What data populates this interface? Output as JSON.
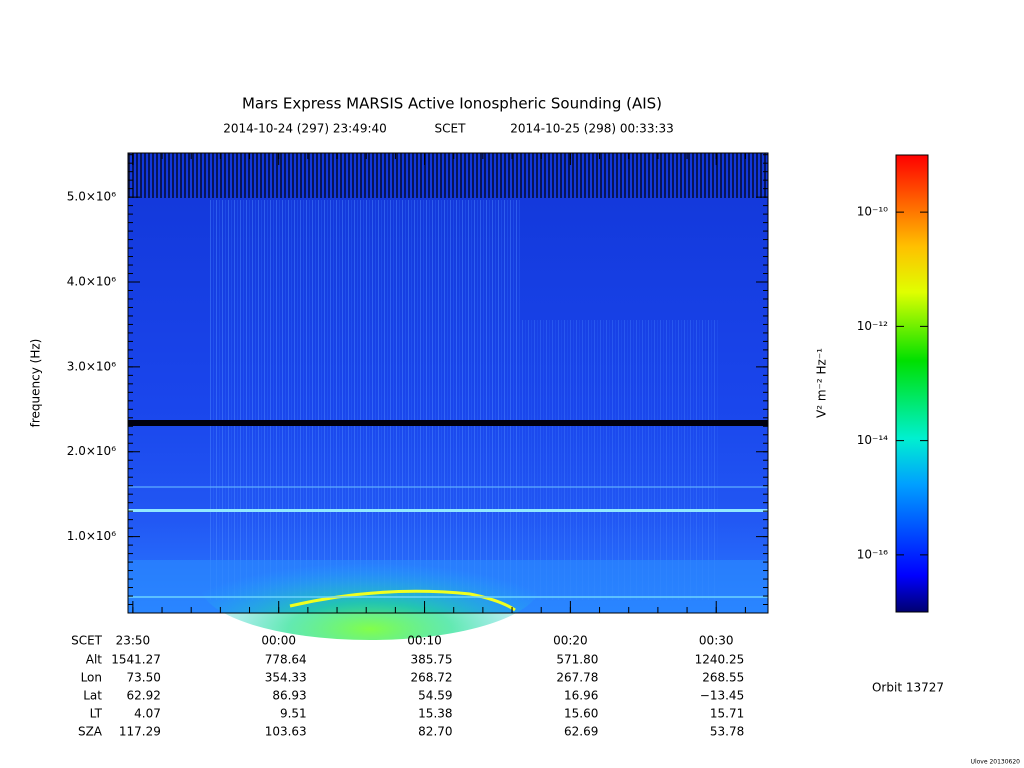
{
  "chart_data": {
    "type": "spectrogram",
    "title": "Mars Express MARSIS Active Ionospheric Sounding (AIS)",
    "start_label": "2014-10-24 (297) 23:49:40",
    "time_system": "SCET",
    "end_label": "2014-10-25 (298) 00:33:33",
    "ylabel": "frequency (Hz)",
    "xlim": [
      "23:49:40",
      "00:33:33"
    ],
    "xticks": [
      "23:50",
      "00:00",
      "00:10",
      "00:20",
      "00:30"
    ],
    "ylim": [
      100000,
      5520000
    ],
    "yticks": [
      {
        "value": 1000000,
        "label": "1.0×10⁶"
      },
      {
        "value": 2000000,
        "label": "2.0×10⁶"
      },
      {
        "value": 3000000,
        "label": "3.0×10⁶"
      },
      {
        "value": 4000000,
        "label": "4.0×10⁶"
      },
      {
        "value": 5000000,
        "label": "5.0×10⁶"
      }
    ],
    "ephemeris": {
      "labels": [
        "SCET",
        "Alt",
        "Lon",
        "Lat",
        "LT",
        "SZA"
      ],
      "rows": [
        [
          "1541.27",
          "778.64",
          "385.75",
          "571.80",
          "1240.25"
        ],
        [
          "73.50",
          "354.33",
          "268.72",
          "267.78",
          "268.55"
        ],
        [
          "62.92",
          "86.93",
          "54.59",
          "16.96",
          "−13.45"
        ],
        [
          "4.07",
          "9.51",
          "15.38",
          "15.60",
          "15.71"
        ],
        [
          "117.29",
          "103.63",
          "82.70",
          "62.69",
          "53.78"
        ]
      ]
    },
    "colorbar": {
      "label": "V² m⁻² Hz⁻¹",
      "log": true,
      "clim": [
        1e-17,
        1e-09
      ],
      "ticks": [
        {
          "value": 1e-10,
          "label": "10⁻¹⁰"
        },
        {
          "value": 1e-12,
          "label": "10⁻¹²"
        },
        {
          "value": 1e-14,
          "label": "10⁻¹⁴"
        },
        {
          "value": 1e-16,
          "label": "10⁻¹⁶"
        }
      ]
    },
    "orbit": "Orbit 13727",
    "footer": "Ulove 20130620"
  }
}
